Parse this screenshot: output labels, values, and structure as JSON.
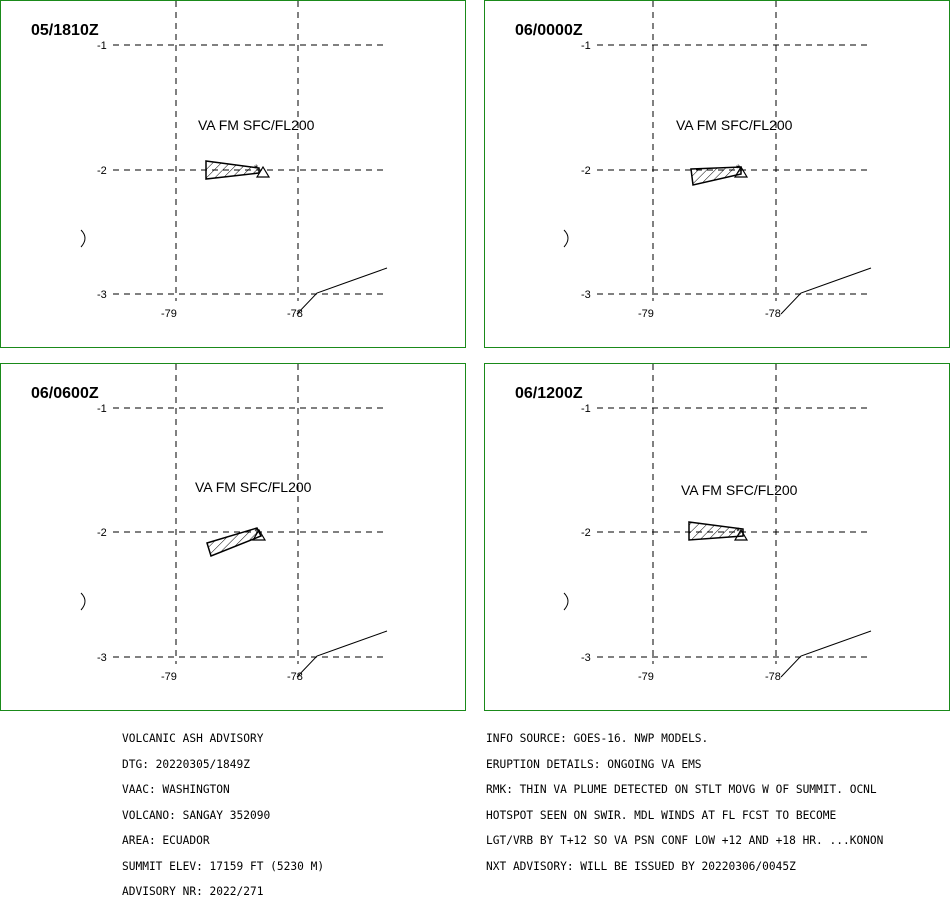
{
  "panels": [
    {
      "time": "05/1810Z",
      "va_label": "VA FM SFC/FL200",
      "lat_labels": [
        "-1",
        "-2",
        "-3"
      ],
      "lon_labels": [
        "-79",
        "-78"
      ]
    },
    {
      "time": "06/0000Z",
      "va_label": "VA FM SFC/FL200",
      "lat_labels": [
        "-1",
        "-2",
        "-3"
      ],
      "lon_labels": [
        "-79",
        "-78"
      ]
    },
    {
      "time": "06/0600Z",
      "va_label": "VA FM SFC/FL200",
      "lat_labels": [
        "-1",
        "-2",
        "-3"
      ],
      "lon_labels": [
        "-79",
        "-78"
      ]
    },
    {
      "time": "06/1200Z",
      "va_label": "VA FM SFC/FL200",
      "lat_labels": [
        "-1",
        "-2",
        "-3"
      ],
      "lon_labels": [
        "-79",
        "-78"
      ]
    }
  ],
  "advisory_left": [
    "VOLCANIC ASH ADVISORY",
    "DTG: 20220305/1849Z",
    "VAAC: WASHINGTON",
    "VOLCANO: SANGAY 352090",
    "AREA: ECUADOR",
    "SUMMIT ELEV: 17159 FT (5230 M)",
    "ADVISORY NR: 2022/271"
  ],
  "advisory_right": [
    "INFO SOURCE: GOES-16. NWP MODELS.",
    "ERUPTION DETAILS: ONGOING VA EMS",
    "RMK: THIN VA PLUME DETECTED ON STLT MOVG W OF SUMMIT. OCNL",
    "HOTSPOT SEEN ON SWIR. MDL WINDS AT FL FCST TO BECOME",
    "LGT/VRB BY T+12 SO VA PSN CONF LOW +12 AND +18 HR. ...KONON",
    "NXT ADVISORY: WILL BE ISSUED BY 20220306/0045Z"
  ]
}
